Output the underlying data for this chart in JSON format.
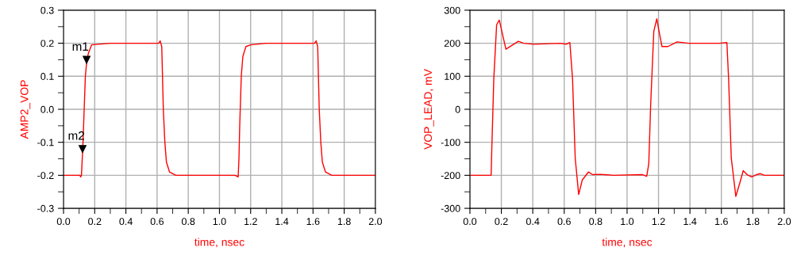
{
  "chart_data": [
    {
      "type": "line",
      "xlabel": "time, nsec",
      "ylabel": "AMP2_VOP",
      "grid": true,
      "xlim": [
        0.0,
        2.0
      ],
      "ylim": [
        -0.3,
        0.3
      ],
      "xticks": [
        {
          "value": 0,
          "label": "0.0"
        },
        {
          "value": 0.1,
          "label": null
        },
        0.2,
        {
          "value": 0.3,
          "label": null
        },
        0.4,
        {
          "value": 0.5,
          "label": null
        },
        0.6,
        {
          "value": 0.7,
          "label": null
        },
        0.8,
        {
          "value": 0.9,
          "label": null
        },
        {
          "value": 1,
          "label": "1.0"
        },
        {
          "value": 1.1,
          "label": null
        },
        1.2,
        {
          "value": 1.3,
          "label": null
        },
        1.4,
        {
          "value": 1.5,
          "label": null
        },
        1.6,
        {
          "value": 1.7,
          "label": null
        },
        1.8,
        {
          "value": 1.9,
          "label": null
        },
        {
          "value": 2,
          "label": "2.0"
        }
      ],
      "yticks": [
        -0.3,
        {
          "value": -0.25,
          "label": null
        },
        -0.2,
        {
          "value": -0.15,
          "label": null
        },
        -0.1,
        {
          "value": -0.05,
          "label": null
        },
        {
          "value": 0,
          "label": "0.0"
        },
        {
          "value": 0.05,
          "label": null
        },
        0.1,
        {
          "value": 0.15,
          "label": null
        },
        0.2,
        {
          "value": 0.25,
          "label": null
        },
        0.3
      ],
      "annotations": [
        {
          "text": "m1",
          "x": 0.148,
          "y": 0.15
        },
        {
          "text": "m2",
          "x": 0.122,
          "y": -0.12
        }
      ],
      "series": [
        {
          "color": "#ff0000",
          "x": [
            0.0,
            0.105,
            0.11,
            0.115,
            0.125,
            0.14,
            0.15,
            0.16,
            0.18,
            0.3,
            0.61,
            0.62,
            0.63,
            0.64,
            0.65,
            0.66,
            0.68,
            0.72,
            1.1,
            1.12,
            1.125,
            1.13,
            1.14,
            1.15,
            1.17,
            1.2,
            1.3,
            1.61,
            1.62,
            1.63,
            1.64,
            1.65,
            1.66,
            1.68,
            1.72,
            2.0
          ],
          "values": [
            -0.2,
            -0.2,
            -0.205,
            -0.2,
            -0.1,
            0.1,
            0.15,
            0.17,
            0.195,
            0.2,
            0.2,
            0.207,
            0.19,
            0.0,
            -0.1,
            -0.16,
            -0.19,
            -0.2,
            -0.2,
            -0.205,
            -0.15,
            -0.05,
            0.1,
            0.16,
            0.19,
            0.195,
            0.2,
            0.2,
            0.207,
            0.19,
            0.0,
            -0.1,
            -0.16,
            -0.19,
            -0.2,
            -0.2
          ]
        }
      ]
    },
    {
      "type": "line",
      "xlabel": "time, nsec",
      "ylabel": "VOP_LEAD, mV",
      "grid": true,
      "xlim": [
        0.0,
        2.0
      ],
      "ylim": [
        -300,
        300
      ],
      "xticks": [
        {
          "value": 0,
          "label": "0.0"
        },
        {
          "value": 0.1,
          "label": null
        },
        0.2,
        {
          "value": 0.3,
          "label": null
        },
        0.4,
        {
          "value": 0.5,
          "label": null
        },
        0.6,
        {
          "value": 0.7,
          "label": null
        },
        0.8,
        {
          "value": 0.9,
          "label": null
        },
        {
          "value": 1,
          "label": "1.0"
        },
        {
          "value": 1.1,
          "label": null
        },
        1.2,
        {
          "value": 1.3,
          "label": null
        },
        1.4,
        {
          "value": 1.5,
          "label": null
        },
        1.6,
        {
          "value": 1.7,
          "label": null
        },
        1.8,
        {
          "value": 1.9,
          "label": null
        },
        {
          "value": 2,
          "label": "2.0"
        }
      ],
      "yticks": [
        -300,
        {
          "value": -250,
          "label": null
        },
        -200,
        {
          "value": -150,
          "label": null
        },
        -100,
        {
          "value": -50,
          "label": null
        },
        0,
        {
          "value": 50,
          "label": null
        },
        100,
        {
          "value": 150,
          "label": null
        },
        200,
        {
          "value": 250,
          "label": null
        },
        300
      ],
      "series": [
        {
          "color": "#ff0000",
          "x": [
            0.0,
            0.135,
            0.139,
            0.152,
            0.17,
            0.187,
            0.199,
            0.229,
            0.308,
            0.342,
            0.409,
            0.577,
            0.611,
            0.636,
            0.653,
            0.67,
            0.692,
            0.715,
            0.754,
            0.78,
            0.83,
            0.914,
            1.099,
            1.125,
            1.138,
            1.15,
            1.17,
            1.189,
            1.2,
            1.222,
            1.26,
            1.318,
            1.394,
            1.588,
            1.635,
            1.646,
            1.663,
            1.692,
            1.719,
            1.739,
            1.764,
            1.793,
            1.823,
            1.848,
            1.874,
            2.0
          ],
          "values": [
            -200,
            -200,
            -125,
            92,
            256,
            270,
            245,
            182,
            206,
            200,
            197,
            200,
            197,
            202,
            92,
            -148,
            -258,
            -214,
            -190,
            -198,
            -197,
            -200,
            -198,
            -203,
            -165,
            12,
            236,
            274,
            245,
            190,
            190,
            204,
            200,
            200,
            202,
            92,
            -148,
            -264,
            -220,
            -186,
            -198,
            -205,
            -198,
            -195,
            -200,
            -200
          ]
        }
      ]
    }
  ]
}
